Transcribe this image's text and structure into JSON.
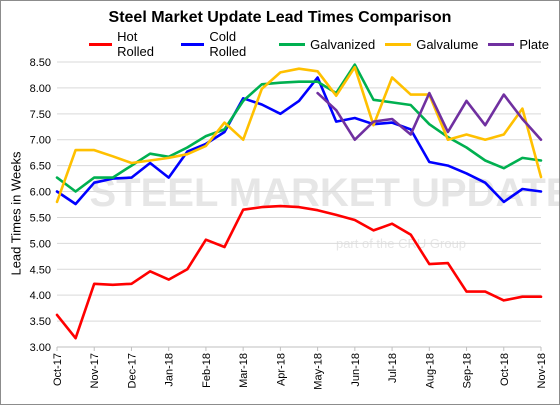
{
  "chart_data": {
    "type": "line",
    "title": "Steel Market Update Lead Times Comparison",
    "ylabel": "Lead Times in Weeks",
    "xlabel": "",
    "ylim": [
      3.0,
      8.5
    ],
    "yticks": [
      "3.00",
      "3.50",
      "4.00",
      "4.50",
      "5.00",
      "5.50",
      "6.00",
      "6.50",
      "7.00",
      "7.50",
      "8.00",
      "8.50"
    ],
    "grid": true,
    "legend_position": "top",
    "x_tick_labels": [
      "Oct-17",
      "Nov-17",
      "Dec-17",
      "Jan-18",
      "Feb-18",
      "Mar-18",
      "Apr-18",
      "May-18",
      "Jun-18",
      "Jul-18",
      "Aug-18",
      "Sep-18",
      "Oct-18",
      "Nov-18"
    ],
    "points_per_month": 2,
    "watermark": {
      "main": "STEEL MARKET UPDATE",
      "sub": "part of the CRU Group"
    },
    "series": [
      {
        "name": "Hot Rolled",
        "color": "#ff0000",
        "start_index": 0,
        "values": [
          3.62,
          3.17,
          4.22,
          4.2,
          4.22,
          4.46,
          4.3,
          4.5,
          5.07,
          4.93,
          5.65,
          5.7,
          5.72,
          5.7,
          5.64,
          5.55,
          5.45,
          5.25,
          5.38,
          5.17,
          4.6,
          4.62,
          4.07,
          4.07,
          3.9,
          3.97,
          3.97
        ]
      },
      {
        "name": "Cold Rolled",
        "color": "#0000ff",
        "start_index": 0,
        "values": [
          6.0,
          5.76,
          6.17,
          6.25,
          6.27,
          6.55,
          6.27,
          6.77,
          6.92,
          7.15,
          7.8,
          7.68,
          7.5,
          7.75,
          8.2,
          7.35,
          7.42,
          7.3,
          7.33,
          7.2,
          6.57,
          6.5,
          6.35,
          6.17,
          5.8,
          6.05,
          6.0
        ]
      },
      {
        "name": "Galvanized",
        "color": "#00b050",
        "start_index": 0,
        "values": [
          6.27,
          6.0,
          6.27,
          6.27,
          6.5,
          6.73,
          6.67,
          6.85,
          7.07,
          7.2,
          7.75,
          8.07,
          8.1,
          8.12,
          8.12,
          7.9,
          8.45,
          7.77,
          7.72,
          7.67,
          7.3,
          7.05,
          6.85,
          6.6,
          6.45,
          6.65,
          6.6
        ]
      },
      {
        "name": "Galvalume",
        "color": "#ffc000",
        "start_index": 0,
        "values": [
          5.8,
          6.8,
          6.8,
          6.68,
          6.55,
          6.6,
          6.65,
          6.72,
          6.88,
          7.33,
          7.0,
          7.98,
          8.3,
          8.37,
          8.32,
          7.85,
          8.4,
          7.28,
          8.2,
          7.87,
          7.87,
          7.0,
          7.1,
          7.0,
          7.1,
          7.6,
          6.28
        ]
      },
      {
        "name": "Plate",
        "color": "#7030a0",
        "start_index": 14,
        "values": [
          7.9,
          7.57,
          7.0,
          7.35,
          7.4,
          7.1,
          7.9,
          7.15,
          7.75,
          7.28,
          7.87,
          7.4,
          7.0
        ]
      }
    ]
  }
}
